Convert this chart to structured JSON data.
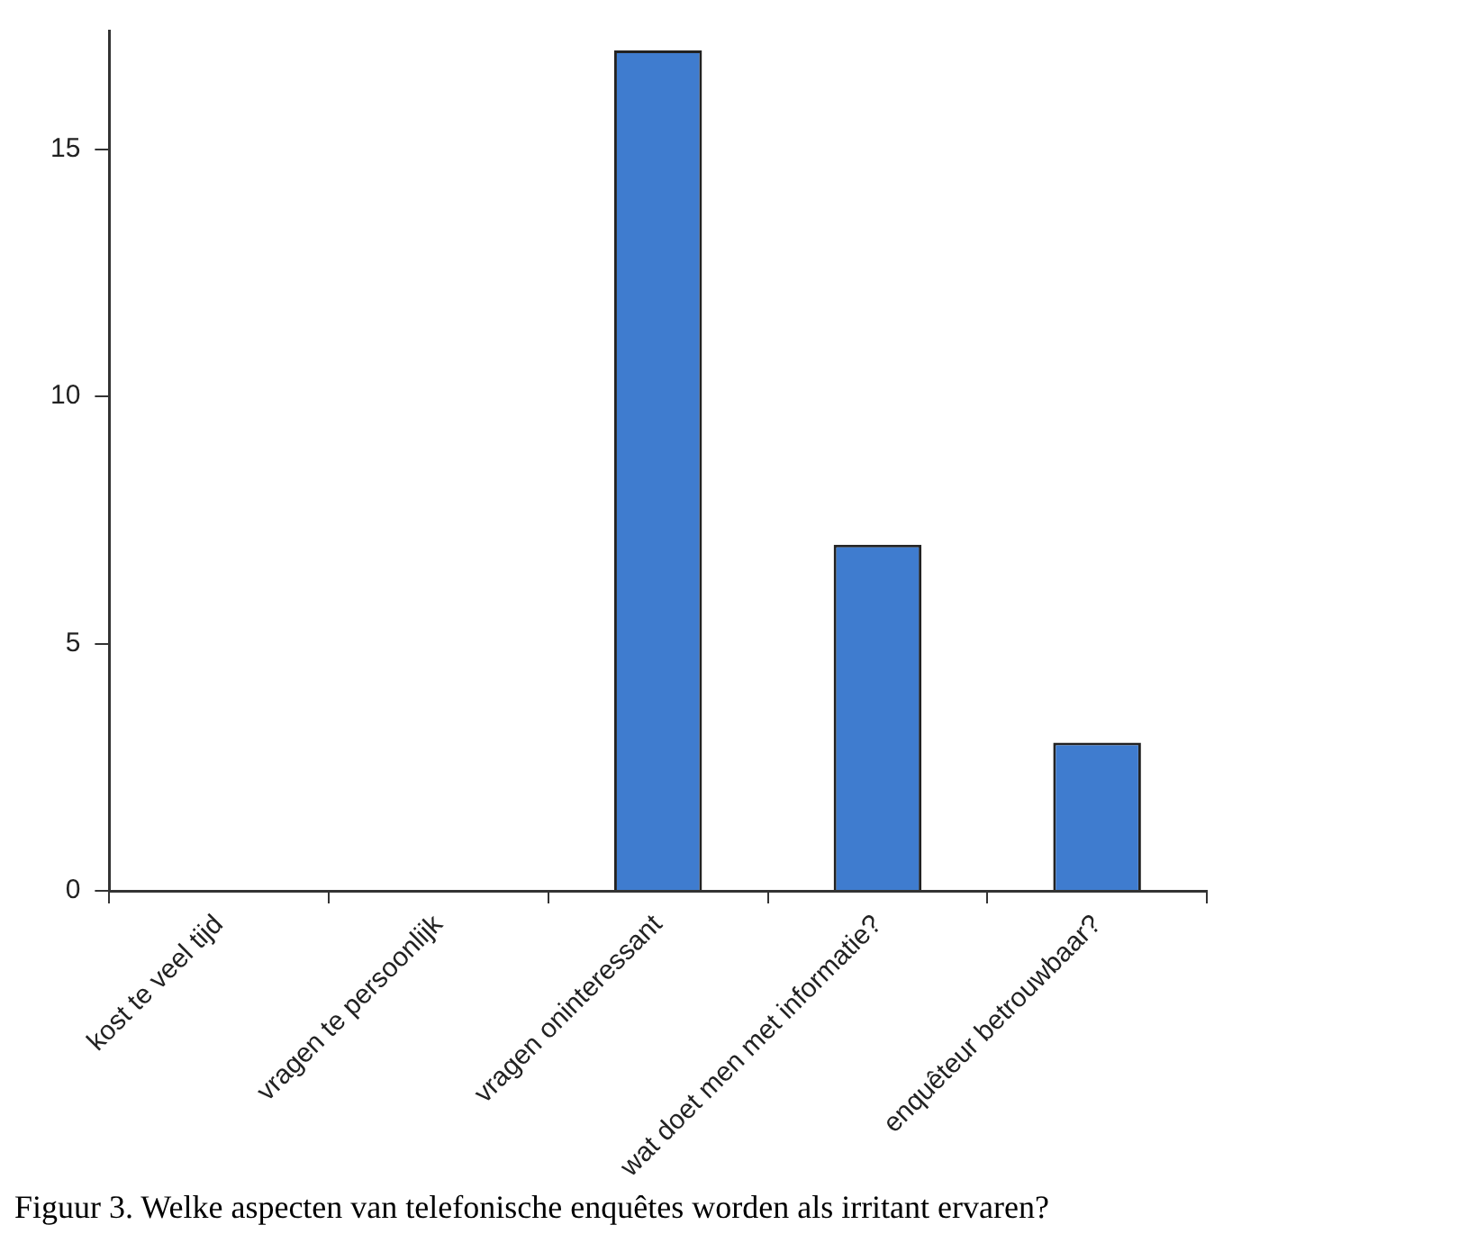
{
  "chart_data": {
    "type": "bar",
    "title": "Figuur 3. Welke aspecten van telefonische enquêtes worden als irritant ervaren?",
    "categories": [
      "kost te veel tijd",
      "vragen te persoonlijk",
      "vragen oninteressant",
      "wat doet men met informatie?",
      "enquêteur betrouwbaar?"
    ],
    "values": [
      null,
      null,
      17,
      7,
      3
    ],
    "color": "#3f7ccf",
    "ylim": [
      0,
      17.4
    ],
    "yticks": [
      0,
      5,
      10,
      15
    ],
    "grid": false,
    "legend": false
  }
}
